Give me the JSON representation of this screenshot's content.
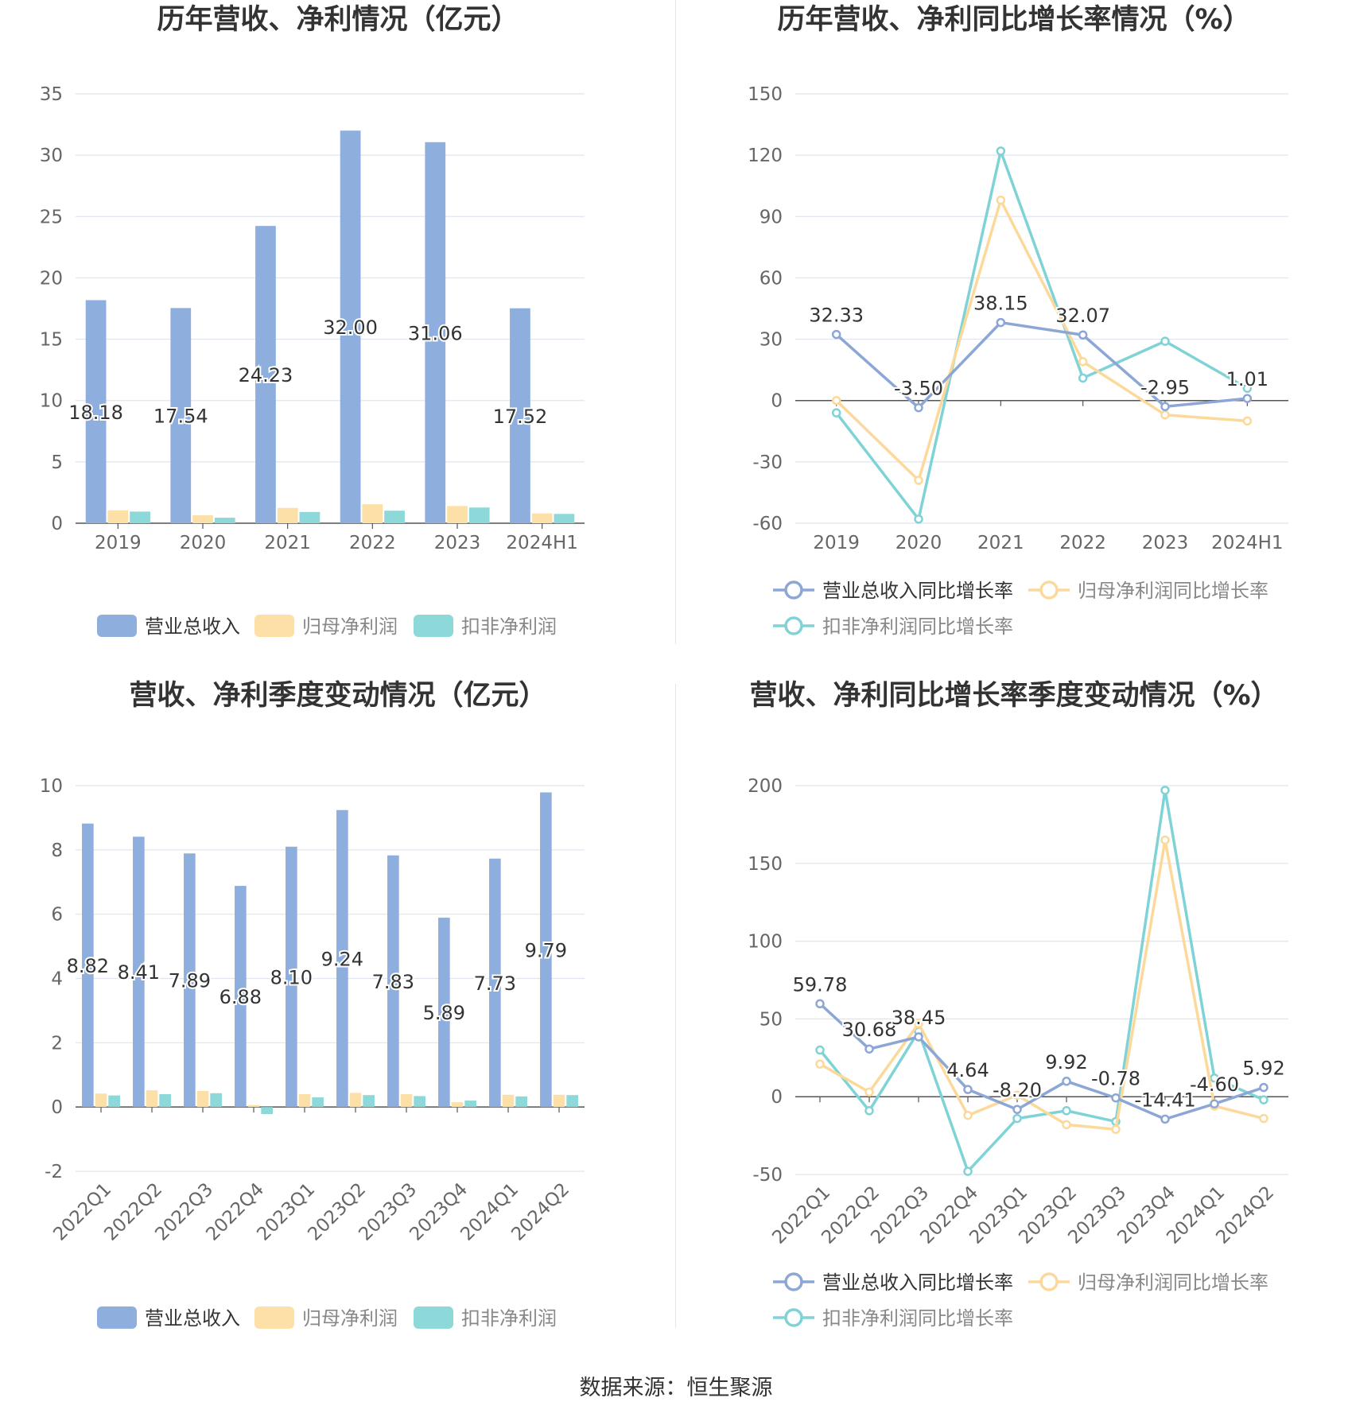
{
  "source_text": "数据来源：恒生聚源",
  "colors": {
    "revenue": "#8eaedd",
    "parent_profit": "#fde0a8",
    "deducted_profit": "#8dd8d8",
    "revenue_line": "#8ca6d6",
    "parent_line": "#fcd99a",
    "deducted_line": "#7fd3d6",
    "title": "#333333",
    "axis_text": "#666666",
    "grid": "#e0e4ee"
  },
  "chart_data": [
    {
      "id": "annual-amounts",
      "type": "bar",
      "title": "历年营收、净利情况（亿元）",
      "categories": [
        "2019",
        "2020",
        "2021",
        "2022",
        "2023",
        "2024H1"
      ],
      "ylim": [
        0,
        35
      ],
      "yticks": [
        "0",
        "5",
        "10",
        "15",
        "20",
        "25",
        "30",
        "35"
      ],
      "grid": true,
      "legend_position": "bottom",
      "series": [
        {
          "name": "营业总收入",
          "values": [
            18.18,
            17.54,
            24.23,
            32.0,
            31.06,
            17.52
          ],
          "labels": [
            "18.18",
            "17.54",
            "24.23",
            "32.00",
            "31.06",
            "17.52"
          ]
        },
        {
          "name": "归母净利润",
          "values": [
            1.05,
            0.65,
            1.25,
            1.55,
            1.4,
            0.8
          ]
        },
        {
          "name": "扣非净利润",
          "values": [
            0.95,
            0.45,
            0.92,
            1.02,
            1.28,
            0.76
          ]
        }
      ]
    },
    {
      "id": "annual-growth",
      "type": "line",
      "title": "历年营收、净利同比增长率情况（%）",
      "categories": [
        "2019",
        "2020",
        "2021",
        "2022",
        "2023",
        "2024H1"
      ],
      "ylim": [
        -60,
        150
      ],
      "yticks": [
        "-60",
        "-30",
        "0",
        "30",
        "60",
        "90",
        "120",
        "150"
      ],
      "grid": true,
      "legend_position": "bottom",
      "series": [
        {
          "name": "营业总收入同比增长率",
          "values": [
            32.33,
            -3.5,
            38.15,
            32.07,
            -2.95,
            1.01
          ],
          "labels": [
            "32.33",
            "-3.50",
            "38.15",
            "32.07",
            "-2.95",
            "1.01"
          ]
        },
        {
          "name": "归母净利润同比增长率",
          "values": [
            0,
            -39,
            98,
            19,
            -7,
            -10
          ]
        },
        {
          "name": "扣非净利润同比增长率",
          "values": [
            -6,
            -58,
            122,
            11,
            29,
            6
          ]
        }
      ]
    },
    {
      "id": "quarterly-amounts",
      "type": "bar",
      "title": "营收、净利季度变动情况（亿元）",
      "categories": [
        "2022Q1",
        "2022Q2",
        "2022Q3",
        "2022Q4",
        "2023Q1",
        "2023Q2",
        "2023Q3",
        "2023Q4",
        "2024Q1",
        "2024Q2"
      ],
      "ylim": [
        -2,
        10
      ],
      "yticks": [
        "-2",
        "0",
        "2",
        "4",
        "6",
        "8",
        "10"
      ],
      "grid": true,
      "legend_position": "bottom",
      "series": [
        {
          "name": "营业总收入",
          "values": [
            8.82,
            8.41,
            7.89,
            6.88,
            8.1,
            9.24,
            7.83,
            5.89,
            7.73,
            9.79
          ],
          "labels": [
            "8.82",
            "8.41",
            "7.89",
            "6.88",
            "8.10",
            "9.24",
            "7.83",
            "5.89",
            "7.73",
            "9.79"
          ]
        },
        {
          "name": "归母净利润",
          "values": [
            0.42,
            0.52,
            0.5,
            0.06,
            0.4,
            0.44,
            0.4,
            0.15,
            0.38,
            0.38
          ]
        },
        {
          "name": "扣非净利润",
          "values": [
            0.36,
            0.4,
            0.43,
            -0.22,
            0.3,
            0.37,
            0.34,
            0.2,
            0.33,
            0.37
          ]
        }
      ]
    },
    {
      "id": "quarterly-growth",
      "type": "line",
      "title": "营收、净利同比增长率季度变动情况（%）",
      "categories": [
        "2022Q1",
        "2022Q2",
        "2022Q3",
        "2022Q4",
        "2023Q1",
        "2023Q2",
        "2023Q3",
        "2023Q4",
        "2024Q1",
        "2024Q2"
      ],
      "ylim": [
        -50,
        200
      ],
      "yticks": [
        "-50",
        "0",
        "50",
        "100",
        "150",
        "200"
      ],
      "grid": true,
      "legend_position": "bottom",
      "series": [
        {
          "name": "营业总收入同比增长率",
          "values": [
            59.78,
            30.68,
            38.45,
            4.64,
            -8.2,
            9.92,
            -0.78,
            -14.41,
            -4.6,
            5.92
          ],
          "labels": [
            "59.78",
            "30.68",
            "38.45",
            "4.64",
            "-8.20",
            "9.92",
            "-0.78",
            "-14.41",
            "-4.60",
            "5.92"
          ]
        },
        {
          "name": "归母净利润同比增长率",
          "values": [
            21,
            3,
            47,
            -12,
            1,
            -18,
            -21,
            165,
            -6,
            -14
          ]
        },
        {
          "name": "扣非净利润同比增长率",
          "values": [
            30,
            -9,
            42,
            -48,
            -14,
            -9,
            -16,
            197,
            12,
            -2
          ]
        }
      ]
    }
  ]
}
